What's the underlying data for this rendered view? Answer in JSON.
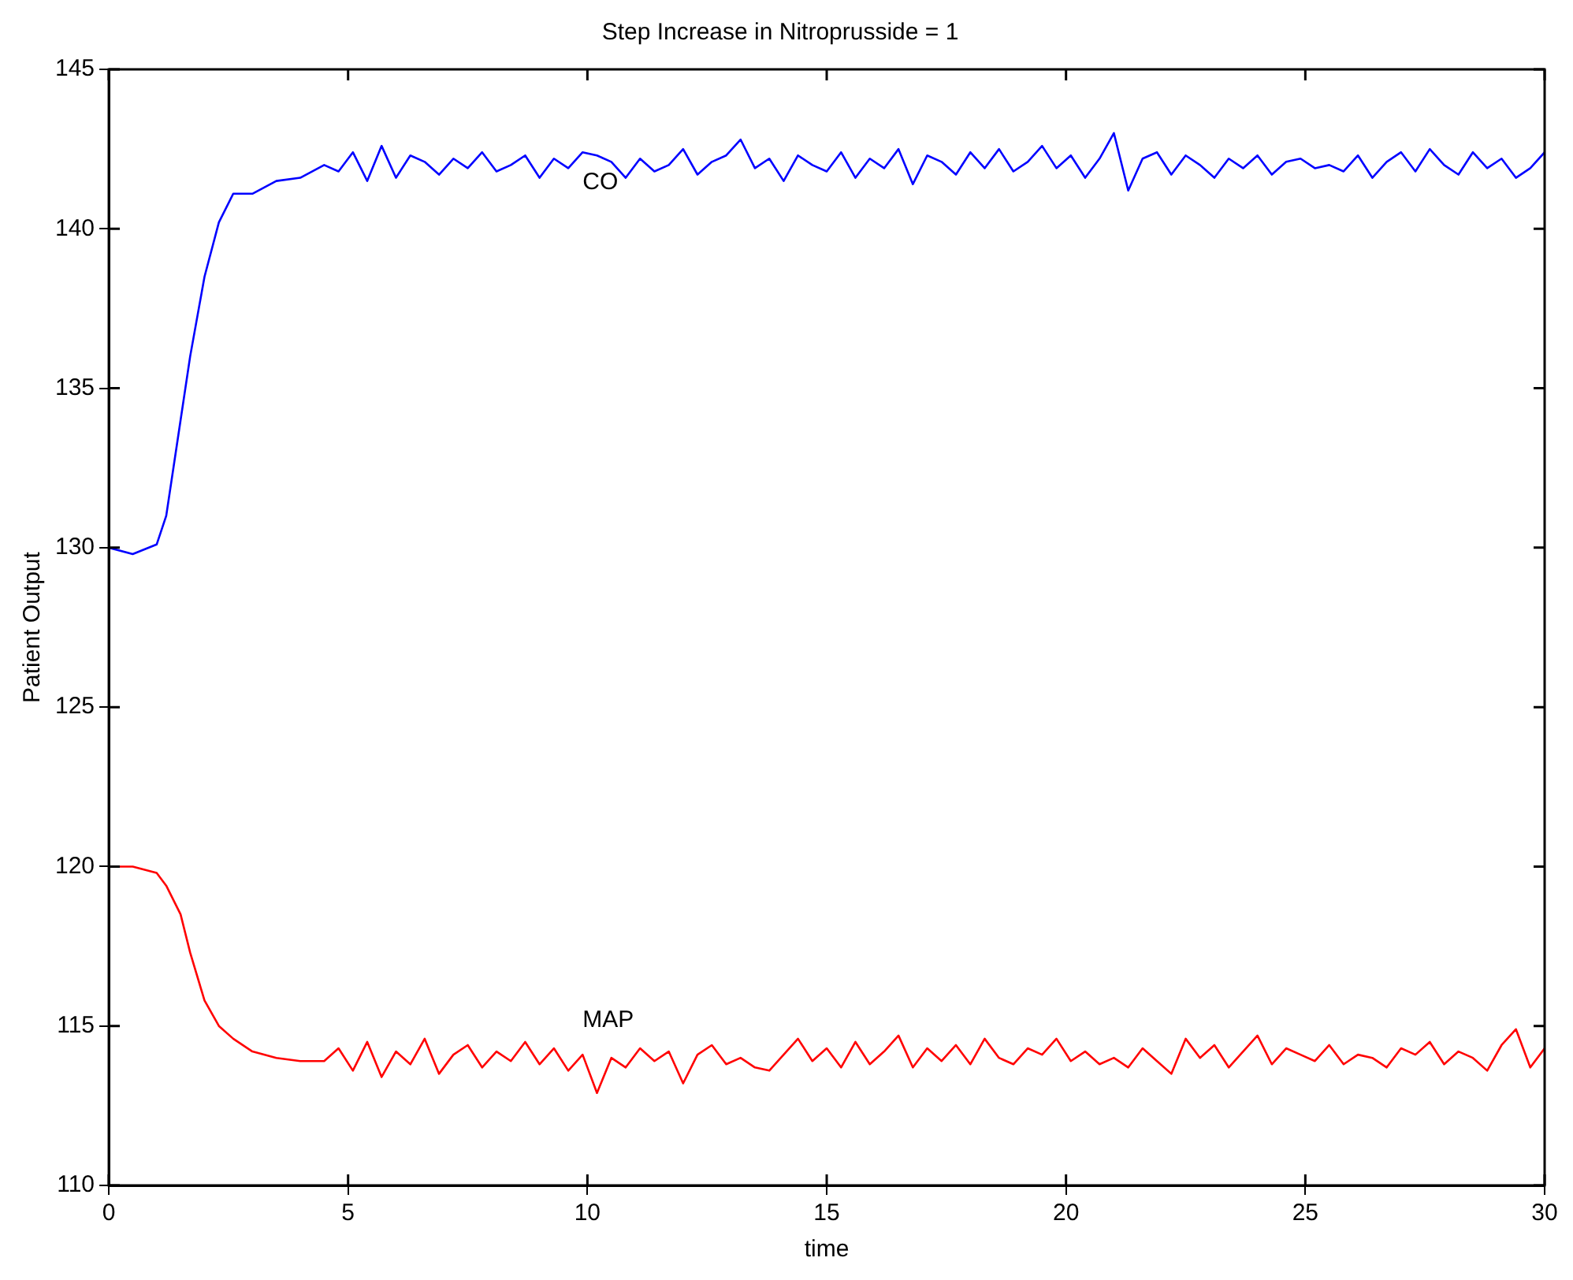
{
  "chart_data": {
    "type": "line",
    "title": "Step Increase in Nitroprusside = 1",
    "xlabel": "time",
    "ylabel": "Patient Output",
    "x": [
      0,
      0.5,
      1,
      1.2,
      1.5,
      1.7,
      2,
      2.3,
      2.6,
      3,
      3.5,
      4,
      4.5,
      4.8,
      5.1,
      5.4,
      5.7,
      6,
      6.3,
      6.6,
      6.9,
      7.2,
      7.5,
      7.8,
      8.1,
      8.4,
      8.7,
      9,
      9.3,
      9.6,
      9.9,
      10.2,
      10.5,
      10.8,
      11.1,
      11.4,
      11.7,
      12,
      12.3,
      12.6,
      12.9,
      13.2,
      13.5,
      13.8,
      14.1,
      14.4,
      14.7,
      15,
      15.3,
      15.6,
      15.9,
      16.2,
      16.5,
      16.8,
      17.1,
      17.4,
      17.7,
      18,
      18.3,
      18.6,
      18.9,
      19.2,
      19.5,
      19.8,
      20.1,
      20.4,
      20.7,
      21,
      21.3,
      21.6,
      21.9,
      22.2,
      22.5,
      22.8,
      23.1,
      23.4,
      23.7,
      24,
      24.3,
      24.6,
      24.9,
      25.2,
      25.5,
      25.8,
      26.1,
      26.4,
      26.7,
      27,
      27.3,
      27.6,
      27.9,
      28.2,
      28.5,
      28.8,
      29.1,
      29.4,
      29.7,
      30
    ],
    "series": [
      {
        "name": "CO",
        "color": "#0000ff",
        "values": [
          130,
          129.8,
          130.1,
          131,
          134,
          136,
          138.5,
          140.2,
          141.1,
          141.1,
          141.5,
          141.6,
          142.0,
          141.8,
          142.4,
          141.5,
          142.6,
          141.6,
          142.3,
          142.1,
          141.7,
          142.2,
          141.9,
          142.4,
          141.8,
          142.0,
          142.3,
          141.6,
          142.2,
          141.9,
          142.4,
          142.3,
          142.1,
          141.6,
          142.2,
          141.8,
          142.0,
          142.5,
          141.7,
          142.1,
          142.3,
          142.8,
          141.9,
          142.2,
          141.5,
          142.3,
          142.0,
          141.8,
          142.4,
          141.6,
          142.2,
          141.9,
          142.5,
          141.4,
          142.3,
          142.1,
          141.7,
          142.4,
          141.9,
          142.5,
          141.8,
          142.1,
          142.6,
          141.9,
          142.3,
          141.6,
          142.2,
          143.0,
          141.2,
          142.2,
          142.4,
          141.7,
          142.3,
          142.0,
          141.6,
          142.2,
          141.9,
          142.3,
          141.7,
          142.1,
          142.2,
          141.9,
          142.0,
          141.8,
          142.3,
          141.6,
          142.1,
          142.4,
          141.8,
          142.5,
          142.0,
          141.7,
          142.4,
          141.9,
          142.2,
          141.6,
          141.9,
          142.4
        ]
      },
      {
        "name": "MAP",
        "color": "#ff0000",
        "values": [
          120,
          120,
          119.8,
          119.4,
          118.5,
          117.3,
          115.8,
          115,
          114.6,
          114.2,
          114,
          113.9,
          113.9,
          114.3,
          113.6,
          114.5,
          113.4,
          114.2,
          113.8,
          114.6,
          113.5,
          114.1,
          114.4,
          113.7,
          114.2,
          113.9,
          114.5,
          113.8,
          114.3,
          113.6,
          114.1,
          112.9,
          114.0,
          113.7,
          114.3,
          113.9,
          114.2,
          113.2,
          114.1,
          114.4,
          113.8,
          114.0,
          113.7,
          113.6,
          114.1,
          114.6,
          113.9,
          114.3,
          113.7,
          114.5,
          113.8,
          114.2,
          114.7,
          113.7,
          114.3,
          113.9,
          114.4,
          113.8,
          114.6,
          114.0,
          113.8,
          114.3,
          114.1,
          114.6,
          113.9,
          114.2,
          113.8,
          114.0,
          113.7,
          114.3,
          113.9,
          113.5,
          114.6,
          114.0,
          114.4,
          113.7,
          114.2,
          114.7,
          113.8,
          114.3,
          114.1,
          113.9,
          114.4,
          113.8,
          114.1,
          114.0,
          113.7,
          114.3,
          114.1,
          114.5,
          113.8,
          114.2,
          114.0,
          113.6,
          114.4,
          114.9,
          113.7,
          114.3
        ]
      }
    ],
    "xlim": [
      0,
      30
    ],
    "xticks": [
      0,
      5,
      10,
      15,
      20,
      25,
      30
    ],
    "ylim": [
      110,
      145
    ],
    "yticks": [
      110,
      115,
      120,
      125,
      130,
      135,
      140,
      145
    ],
    "grid": false,
    "legend": false,
    "marker": "none",
    "line_style": "solid"
  }
}
